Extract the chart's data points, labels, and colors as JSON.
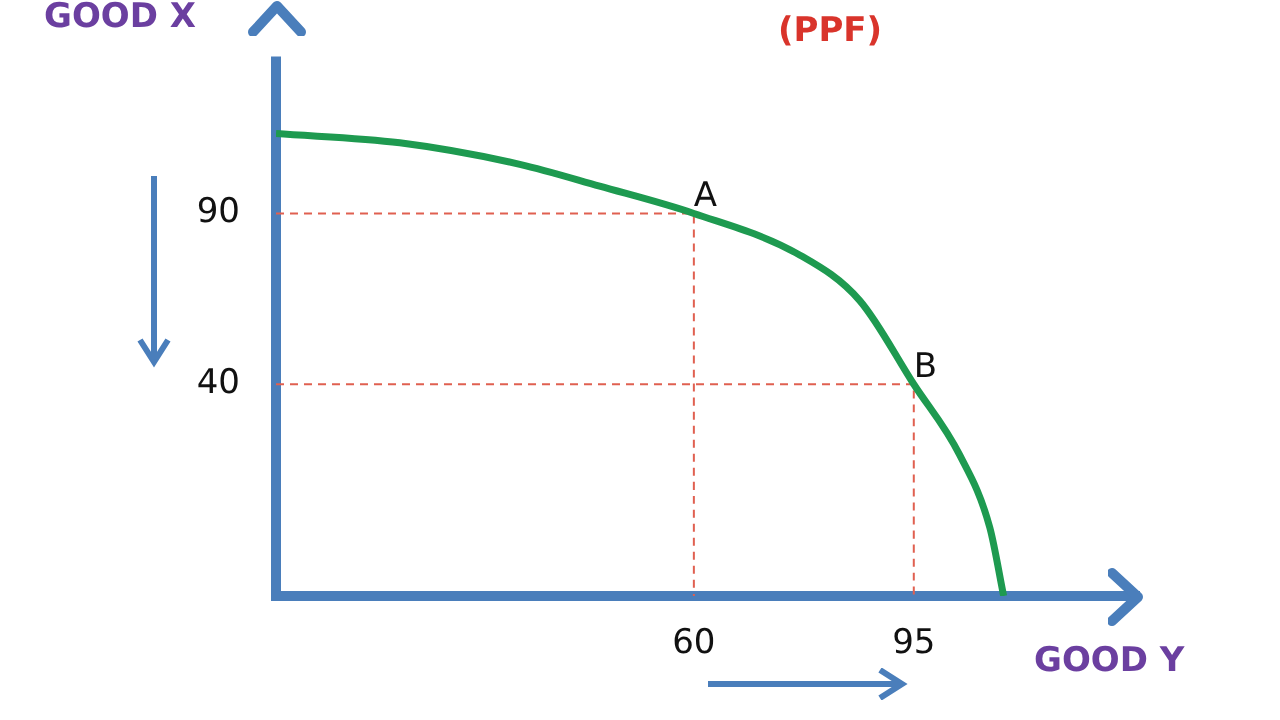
{
  "chart_data": {
    "type": "line",
    "title": "(PPF)",
    "xlabel": "GOOD Y",
    "ylabel": "GOOD X",
    "xlim": [
      -6.5,
      131
    ],
    "ylim": [
      -22,
      136
    ],
    "xticks": [
      60,
      95
    ],
    "yticks": [
      40,
      90
    ],
    "grid": false,
    "legend": false,
    "marker": "none",
    "series": [
      {
        "color": "#1e9a50",
        "x": [
          -6.5,
          13.2,
          32.3,
          45,
          60,
          76.9,
          86.4,
          95,
          102.3,
          107.1,
          109.3
        ],
        "values": [
          113.4,
          110.7,
          104.4,
          98,
          90,
          77.8,
          64.5,
          40,
          19.3,
          -2,
          -22
        ]
      },
      {
        "color": "#e06050",
        "line_style": "dashed",
        "x": [
          -6.5,
          60,
          60
        ],
        "values": [
          90,
          90,
          -22
        ]
      },
      {
        "color": "#e06050",
        "line_style": "dashed",
        "x": [
          -6.5,
          95,
          95
        ],
        "values": [
          40,
          40,
          -22
        ]
      }
    ],
    "annotations": [
      {
        "text": "A",
        "x": 60,
        "y": 90
      },
      {
        "text": "B",
        "x": 95,
        "y": 40
      }
    ]
  }
}
